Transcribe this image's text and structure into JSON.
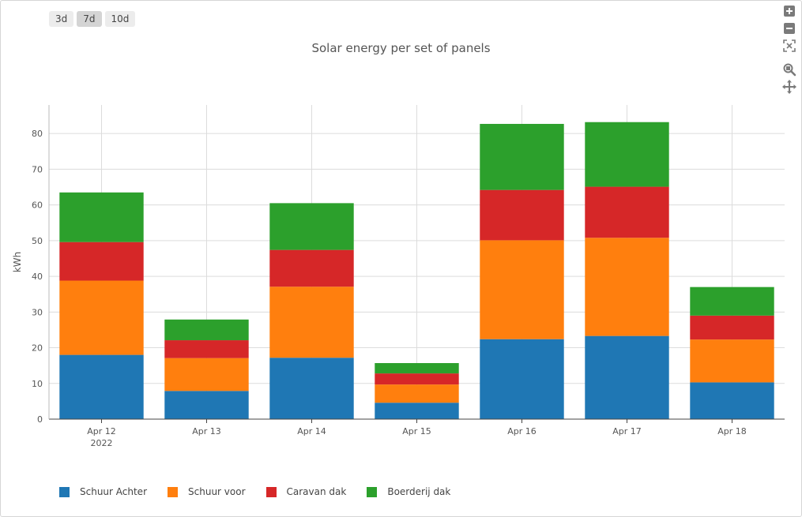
{
  "range_buttons": [
    {
      "label": "3d",
      "active": false
    },
    {
      "label": "7d",
      "active": true
    },
    {
      "label": "10d",
      "active": false
    }
  ],
  "toolbar": {
    "icons": [
      "zoom-in-icon",
      "zoom-out-icon",
      "autoscale-icon",
      "zoom-icon",
      "pan-icon"
    ]
  },
  "chart_data": {
    "type": "bar",
    "stacked": true,
    "title": "Solar energy per set of panels",
    "ylabel": "kWh",
    "xlabel": "",
    "categories": [
      "Apr 12",
      "Apr 13",
      "Apr 14",
      "Apr 15",
      "Apr 16",
      "Apr 17",
      "Apr 18"
    ],
    "category_sublabels": [
      "2022",
      "",
      "",
      "",
      "",
      "",
      ""
    ],
    "ylim": [
      0,
      88
    ],
    "yticks": [
      0,
      10,
      20,
      30,
      40,
      50,
      60,
      70,
      80
    ],
    "grid": true,
    "legend_position": "bottom-left",
    "series": [
      {
        "name": "Schuur Achter",
        "color": "#1f77b4",
        "values": [
          18.0,
          7.9,
          17.2,
          4.6,
          22.4,
          23.3,
          10.3
        ]
      },
      {
        "name": "Schuur voor",
        "color": "#ff7f0e",
        "values": [
          20.8,
          9.2,
          19.9,
          5.1,
          27.7,
          27.5,
          12.0
        ]
      },
      {
        "name": "Caravan dak",
        "color": "#d62728",
        "values": [
          10.8,
          5.0,
          10.3,
          3.1,
          14.1,
          14.3,
          6.7
        ]
      },
      {
        "name": "Boerderij dak",
        "color": "#2ca02c",
        "values": [
          13.9,
          5.8,
          13.1,
          2.9,
          18.5,
          18.1,
          8.0
        ]
      }
    ]
  }
}
